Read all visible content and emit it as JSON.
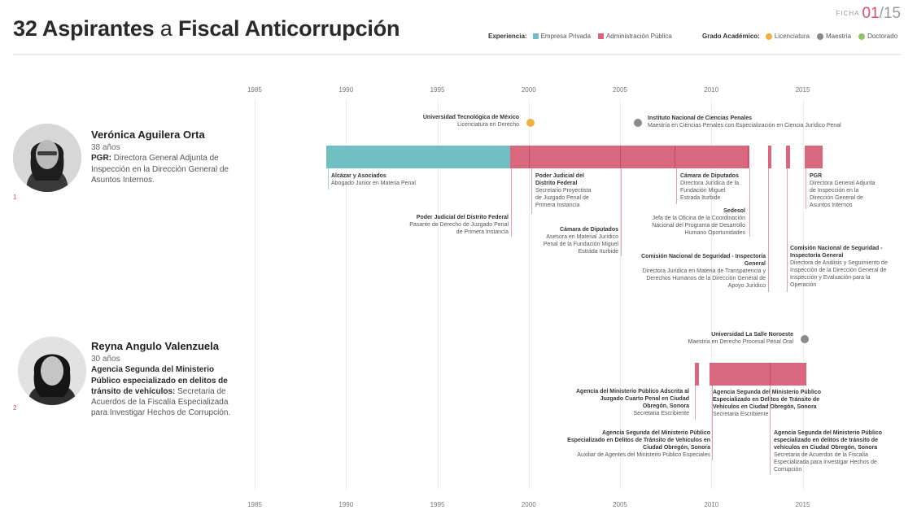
{
  "header": {
    "title_a": "32 Aspirantes",
    "title_conn": "a",
    "title_b": "Fiscal Anticorrupción",
    "ficha_label": "FICHA",
    "ficha_current": "01",
    "ficha_sep": "/",
    "ficha_total": "15"
  },
  "legend": {
    "experience_title": "Experiencia:",
    "experience": [
      {
        "label": "Empresa Privada",
        "color": "#6fbfc3"
      },
      {
        "label": "Administración Pública",
        "color": "#d9687f"
      }
    ],
    "degree_title": "Grado Académico:",
    "degrees": [
      {
        "label": "Licenciatura",
        "color": "#f0b040"
      },
      {
        "label": "Maestría",
        "color": "#8a8a8a"
      },
      {
        "label": "Doctorado",
        "color": "#8cc56a"
      }
    ]
  },
  "chart_data": {
    "type": "timeline",
    "x_range": [
      1985,
      2016
    ],
    "ticks": [
      "1985",
      "1990",
      "1995",
      "2000",
      "2005",
      "2010",
      "2015"
    ],
    "persons": [
      {
        "index": "1",
        "name": "Verónica Aguilera Orta",
        "age": "38 años",
        "role_bold": "PGR:",
        "role_text": "Directora General Adjunta de Inspección en la Dirección General de Asuntos Internos.",
        "bars": [
          {
            "type": "private",
            "start": 1988.9,
            "end": 1999
          },
          {
            "type": "public",
            "start": 1999,
            "end": 2012.1
          },
          {
            "type": "public",
            "start": 2013.1,
            "end": 2013.3
          },
          {
            "type": "public",
            "start": 2014.1,
            "end": 2014.3
          },
          {
            "type": "public",
            "start": 2015.1,
            "end": 2016.1
          }
        ],
        "dividers": [
          2000,
          2005,
          2008,
          2012
        ],
        "degrees": [
          {
            "level": "Licenciatura",
            "year": 2000.1,
            "institution": "Universidad Tecnológica de México",
            "program": "Licenciatura en Derecho"
          },
          {
            "level": "Maestría",
            "year": 2006,
            "institution": "Instituto Nacional de Ciencias Penales",
            "program": "Maestría en Ciencias Penales con Especialización en Ciencia Jurídico Penal"
          }
        ],
        "positions": [
          {
            "title": "Alcázar y Asociados",
            "desc": "Abogado Junior en Materia Penal"
          },
          {
            "title": "Poder Judicial del Distrito Federal",
            "desc": "Pasante de Derecho de Juzgado Penal de Primera Instancia"
          },
          {
            "title": "Poder Judicial del Distrito Federal",
            "desc": "Secretario Proyectista de Juzgado Penal de Primera Instancia"
          },
          {
            "title": "Cámara de Diputados",
            "desc": "Asesora en Material Jurídico Penal de la Fundación Miguel Estrada Iturbide"
          },
          {
            "title": "Cámara de Diputados",
            "desc": "Directora Jurídica de la Fundación Miguel Estrada Iturbide"
          },
          {
            "title": "Sedesol",
            "desc": "Jefa de la Oficina de la Coordinación Nacional del Programa de Desarrollo Humano Oportunidades"
          },
          {
            "title": "Comisión Nacional de Seguridad - Inspectoría General",
            "desc": "Directora Jurídica en Materia de Transparencia y Derechos Humanos de la Dirección General de Apoyo Jurídico"
          },
          {
            "title": "Comisión Nacional de Seguridad - Inspectoría General",
            "desc": "Directora de Análisis y Seguimiento de Inspección de la Dirección General de Inspección y Evaluación para la Operación"
          },
          {
            "title": "PGR",
            "desc": "Directora General Adjunta de Inspección en la Dirección General de Asuntos Internos"
          }
        ]
      },
      {
        "index": "2",
        "name": "Reyna Angulo Valenzuela",
        "age": "30 años",
        "role_bold": "Agencia Segunda del Ministerio Público especializado en delitos de tránsito de vehículos:",
        "role_text": "Secretaria de Acuerdos de la Fiscalía Especializada para Investigar Hechos de Corrupción.",
        "bars": [
          {
            "type": "public",
            "start": 2009.1,
            "end": 2009.3
          },
          {
            "type": "public",
            "start": 2009.9,
            "end": 2015.2
          }
        ],
        "dividers": [
          2013.2
        ],
        "degrees": [
          {
            "level": "Maestría",
            "year": 2015.1,
            "institution": "Universidad La Salle Noroeste",
            "program": "Maestría en Derecho Procesal Penal Oral"
          }
        ],
        "positions": [
          {
            "title": "Agencia del Ministerio Público Adscrita al Juzgado Cuarto Penal en Ciudad Obregón, Sonora",
            "desc": "Secretaria Escribiente"
          },
          {
            "title": "Agencia Segunda del Ministerio Público Especializado en Delitos de Tránsito de Vehículos en Ciudad Obregón, Sonora",
            "desc": "Auxiliar de Agentes del Ministerio Público Especiales"
          },
          {
            "title": "Agencia Segunda del Ministerio Público Especializado en Delitos de Tránsito de Vehículos en Ciudad Obregón, Sonora",
            "desc": "Secretaria Escribiente"
          },
          {
            "title": "Agencia Segunda del Ministerio Público especializado en delitos de tránsito de vehículos en Ciudad Obregón, Sonora",
            "desc": "Secretaria de Acuerdos de la Fiscalía Especializada para Investigar Hechos de Corrupción"
          }
        ]
      }
    ]
  }
}
